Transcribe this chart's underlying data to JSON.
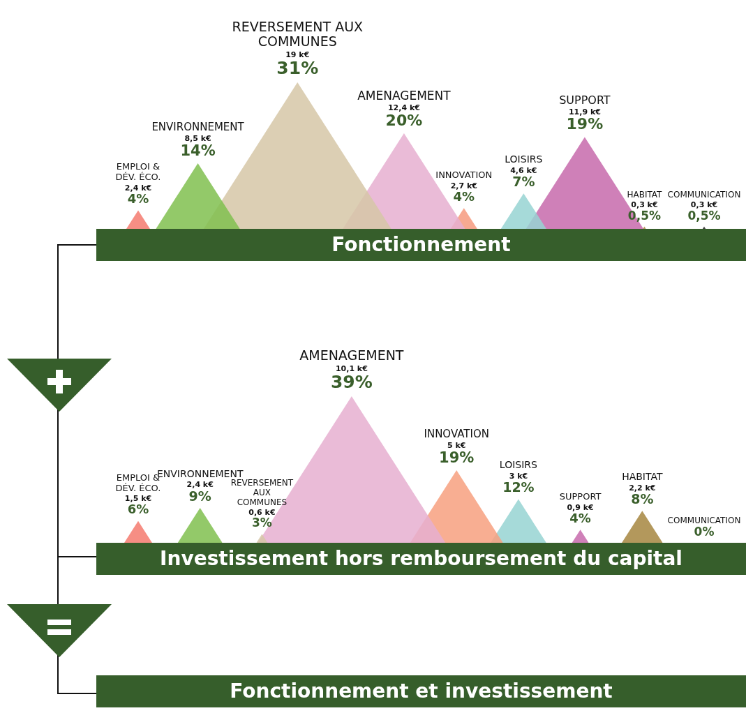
{
  "chart_data": [
    {
      "type": "other",
      "title": "Fonctionnement",
      "categories": [
        "EMPLOI & DÉV. ÉCO.",
        "ENVIRONNEMENT",
        "REVERSEMENT AUX COMMUNES",
        "AMENAGEMENT",
        "INNOVATION",
        "LOISIRS",
        "SUPPORT",
        "HABITAT",
        "COMMUNICATION"
      ],
      "values": [
        2.4,
        8.5,
        19,
        12.4,
        2.7,
        4.6,
        11.9,
        0.3,
        0.3
      ],
      "value_labels": [
        "2,4 k€",
        "8,5 k€",
        "19 k€",
        "12,4 k€",
        "2,7 k€",
        "4,6 k€",
        "11,9 k€",
        "0,3 k€",
        "0,3 k€"
      ],
      "colors": [
        "#f47a6e",
        "#80c04f",
        "#d6c7a7",
        "#e6afd0",
        "#f69a7e",
        "#97d4d2",
        "#c76aab",
        "#a6863f",
        "#222222"
      ],
      "annotations": [
        {
          "text": "4%",
          "x": "EMPLOI & DÉV. ÉCO."
        },
        {
          "text": "14%",
          "x": "ENVIRONNEMENT"
        },
        {
          "text": "31%",
          "x": "REVERSEMENT AUX COMMUNES"
        },
        {
          "text": "20%",
          "x": "AMENAGEMENT"
        },
        {
          "text": "4%",
          "x": "INNOVATION"
        },
        {
          "text": "7%",
          "x": "LOISIRS"
        },
        {
          "text": "19%",
          "x": "SUPPORT"
        },
        {
          "text": "0,5%",
          "x": "HABITAT"
        },
        {
          "text": "0,5%",
          "x": "COMMUNICATION"
        }
      ]
    },
    {
      "type": "other",
      "title": "Investissement hors remboursement du capital",
      "categories": [
        "EMPLOI & DÉV. ÉCO.",
        "ENVIRONNEMENT",
        "REVERSEMENT AUX COMMUNES",
        "AMENAGEMENT",
        "INNOVATION",
        "LOISIRS",
        "SUPPORT",
        "HABITAT",
        "COMMUNICATION"
      ],
      "values": [
        1.5,
        2.4,
        0.6,
        10.1,
        5,
        3,
        0.9,
        2.2,
        null
      ],
      "value_labels": [
        "1,5 k€",
        "2,4 k€",
        "0,6 k€",
        "10,1 k€",
        "5 k€",
        "3 k€",
        "0,9 k€",
        "2,2 k€",
        null
      ],
      "colors": [
        "#f47a6e",
        "#80c04f",
        "#d6c7a7",
        "#e6afd0",
        "#f7a07f",
        "#97d4d2",
        "#c76aab",
        "#a6863f",
        "#222222"
      ],
      "annotations": [
        {
          "text": "6%",
          "x": "EMPLOI & DÉV. ÉCO."
        },
        {
          "text": "9%",
          "x": "ENVIRONNEMENT"
        },
        {
          "text": "3%",
          "x": "REVERSEMENT AUX COMMUNES"
        },
        {
          "text": "39%",
          "x": "AMENAGEMENT"
        },
        {
          "text": "19%",
          "x": "INNOVATION"
        },
        {
          "text": "12%",
          "x": "LOISIRS"
        },
        {
          "text": "4%",
          "x": "SUPPORT"
        },
        {
          "text": "8%",
          "x": "HABITAT"
        },
        {
          "text": "0%",
          "x": "COMMUNICATION"
        }
      ]
    },
    {
      "type": "other",
      "title": "Fonctionnement et investissement"
    }
  ]
}
